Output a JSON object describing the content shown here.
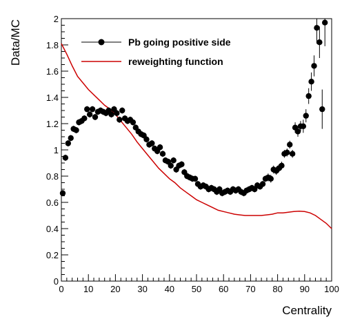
{
  "chart_data": {
    "type": "scatter",
    "xlabel": "Centrality",
    "ylabel": "Data/MC",
    "xlim": [
      0,
      100
    ],
    "ylim": [
      0,
      2
    ],
    "x_ticks": [
      0,
      10,
      20,
      30,
      40,
      50,
      60,
      70,
      80,
      90,
      100
    ],
    "y_ticks": [
      0,
      0.2,
      0.4,
      0.6,
      0.8,
      1,
      1.2,
      1.4,
      1.6,
      1.8,
      2
    ],
    "legend_position": "top-left",
    "grid": false,
    "series": [
      {
        "name": "Pb going positive side",
        "kind": "markers-with-errors",
        "color": "#000000",
        "x": [
          0.5,
          1.5,
          2.5,
          3.5,
          4.5,
          5.5,
          6.5,
          7.5,
          8.5,
          9.5,
          10.5,
          11.5,
          12.5,
          13.5,
          14.5,
          15.5,
          16.5,
          17.5,
          18.5,
          19.5,
          20.5,
          21.5,
          22.5,
          23.5,
          24.5,
          25.5,
          26.5,
          27.5,
          28.5,
          29.5,
          30.5,
          31.5,
          32.5,
          33.5,
          34.5,
          35.5,
          36.5,
          37.5,
          38.5,
          39.5,
          40.5,
          41.5,
          42.5,
          43.5,
          44.5,
          45.5,
          46.5,
          47.5,
          48.5,
          49.5,
          50.5,
          51.5,
          52.5,
          53.5,
          54.5,
          55.5,
          56.5,
          57.5,
          58.5,
          59.5,
          60.5,
          61.5,
          62.5,
          63.5,
          64.5,
          65.5,
          66.5,
          67.5,
          68.5,
          69.5,
          70.5,
          71.5,
          72.5,
          73.5,
          74.5,
          75.5,
          76.5,
          77.5,
          78.5,
          79.5,
          80.5,
          81.5,
          82.5,
          83.5,
          84.5,
          85.5,
          86.5,
          87.5,
          88.5,
          89.5,
          90.5,
          91.5,
          92.5,
          93.5,
          94.5,
          95.5,
          96.5,
          97.5
        ],
        "y": [
          0.67,
          0.94,
          1.05,
          1.09,
          1.16,
          1.15,
          1.21,
          1.22,
          1.24,
          1.31,
          1.27,
          1.31,
          1.25,
          1.29,
          1.3,
          1.29,
          1.28,
          1.3,
          1.27,
          1.31,
          1.28,
          1.23,
          1.3,
          1.24,
          1.22,
          1.23,
          1.21,
          1.17,
          1.14,
          1.12,
          1.11,
          1.08,
          1.04,
          1.05,
          1.01,
          0.99,
          1.02,
          0.97,
          0.92,
          0.91,
          0.88,
          0.92,
          0.85,
          0.88,
          0.89,
          0.83,
          0.8,
          0.79,
          0.78,
          0.78,
          0.74,
          0.72,
          0.73,
          0.72,
          0.7,
          0.71,
          0.7,
          0.68,
          0.7,
          0.67,
          0.68,
          0.69,
          0.68,
          0.7,
          0.69,
          0.7,
          0.68,
          0.67,
          0.69,
          0.7,
          0.71,
          0.7,
          0.73,
          0.72,
          0.74,
          0.78,
          0.79,
          0.78,
          0.85,
          0.84,
          0.86,
          0.88,
          0.97,
          0.98,
          1.04,
          0.97,
          1.17,
          1.14,
          1.18,
          1.18,
          1.26,
          1.41,
          1.52,
          1.64,
          1.93,
          1.82,
          1.31,
          1.97
        ],
        "yerr": [
          0.02,
          0.02,
          0.02,
          0.02,
          0.02,
          0.02,
          0.02,
          0.02,
          0.02,
          0.02,
          0.02,
          0.02,
          0.02,
          0.02,
          0.02,
          0.02,
          0.02,
          0.02,
          0.02,
          0.02,
          0.02,
          0.02,
          0.02,
          0.02,
          0.02,
          0.02,
          0.02,
          0.02,
          0.02,
          0.02,
          0.02,
          0.02,
          0.02,
          0.02,
          0.02,
          0.02,
          0.02,
          0.02,
          0.02,
          0.02,
          0.02,
          0.02,
          0.02,
          0.02,
          0.02,
          0.02,
          0.02,
          0.02,
          0.02,
          0.02,
          0.02,
          0.02,
          0.02,
          0.02,
          0.02,
          0.02,
          0.02,
          0.02,
          0.02,
          0.02,
          0.02,
          0.02,
          0.02,
          0.02,
          0.02,
          0.02,
          0.02,
          0.02,
          0.02,
          0.02,
          0.02,
          0.02,
          0.02,
          0.02,
          0.02,
          0.02,
          0.03,
          0.03,
          0.03,
          0.03,
          0.03,
          0.03,
          0.03,
          0.03,
          0.03,
          0.03,
          0.04,
          0.04,
          0.04,
          0.05,
          0.05,
          0.06,
          0.07,
          0.08,
          0.12,
          0.12,
          0.15,
          0.18
        ]
      },
      {
        "name": "reweighting function",
        "kind": "line",
        "color": "#cc0000",
        "x": [
          0,
          2,
          4,
          6,
          8,
          10,
          12,
          14,
          16,
          18,
          20,
          22,
          24,
          26,
          28,
          30,
          32,
          34,
          36,
          38,
          40,
          42,
          44,
          46,
          48,
          50,
          52,
          54,
          56,
          58,
          60,
          62,
          64,
          66,
          68,
          70,
          72,
          74,
          76,
          78,
          80,
          82,
          84,
          86,
          88,
          90,
          92,
          94,
          96,
          98,
          100
        ],
        "y": [
          1.81,
          1.73,
          1.64,
          1.56,
          1.51,
          1.46,
          1.42,
          1.38,
          1.34,
          1.31,
          1.27,
          1.22,
          1.17,
          1.12,
          1.06,
          1.01,
          0.96,
          0.91,
          0.86,
          0.82,
          0.78,
          0.75,
          0.71,
          0.68,
          0.65,
          0.62,
          0.6,
          0.58,
          0.56,
          0.54,
          0.53,
          0.52,
          0.51,
          0.505,
          0.5,
          0.5,
          0.5,
          0.5,
          0.505,
          0.51,
          0.52,
          0.52,
          0.525,
          0.53,
          0.533,
          0.53,
          0.52,
          0.5,
          0.47,
          0.44,
          0.4
        ]
      }
    ]
  }
}
